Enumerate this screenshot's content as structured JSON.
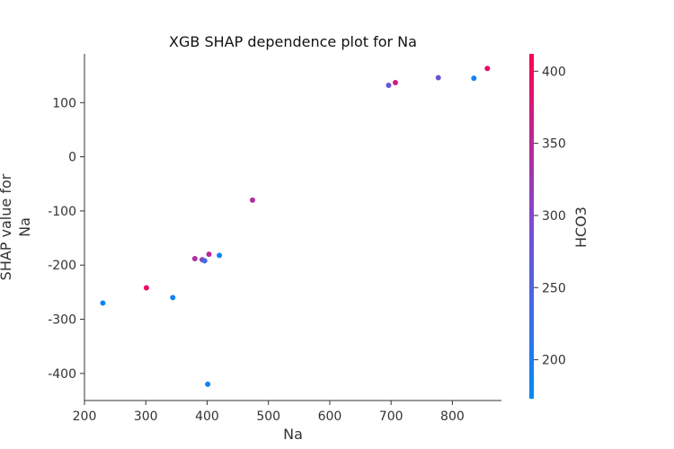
{
  "chart_data": {
    "type": "scatter",
    "title": "XGB SHAP dependence plot for Na",
    "xlabel": "Na",
    "ylabel_lines": [
      "SHAP value for",
      "Na"
    ],
    "xlim": [
      200,
      880
    ],
    "ylim": [
      -450,
      190
    ],
    "x_ticks": [
      200,
      300,
      400,
      500,
      600,
      700,
      800
    ],
    "y_ticks": [
      -400,
      -300,
      -200,
      -100,
      0,
      100
    ],
    "grid": false,
    "colorbar": {
      "label": "HCO3",
      "range": [
        173,
        412
      ],
      "ticks": [
        200,
        250,
        300,
        350,
        400
      ],
      "colors": [
        "#008bfb",
        "#7b4cd6",
        "#ff0052"
      ]
    },
    "points": [
      {
        "x": 230,
        "y": -270,
        "c": 190
      },
      {
        "x": 301,
        "y": -242,
        "c": 395
      },
      {
        "x": 344,
        "y": -260,
        "c": 190
      },
      {
        "x": 380,
        "y": -188,
        "c": 340
      },
      {
        "x": 392,
        "y": -190,
        "c": 310
      },
      {
        "x": 396,
        "y": -192,
        "c": 240
      },
      {
        "x": 401,
        "y": -420,
        "c": 190
      },
      {
        "x": 403,
        "y": -180,
        "c": 350
      },
      {
        "x": 420,
        "y": -182,
        "c": 190
      },
      {
        "x": 474,
        "y": -80,
        "c": 340
      },
      {
        "x": 696,
        "y": 132,
        "c": 275
      },
      {
        "x": 707,
        "y": 137,
        "c": 370
      },
      {
        "x": 777,
        "y": 146,
        "c": 280
      },
      {
        "x": 835,
        "y": 145,
        "c": 190
      },
      {
        "x": 857,
        "y": 163,
        "c": 395
      }
    ]
  }
}
